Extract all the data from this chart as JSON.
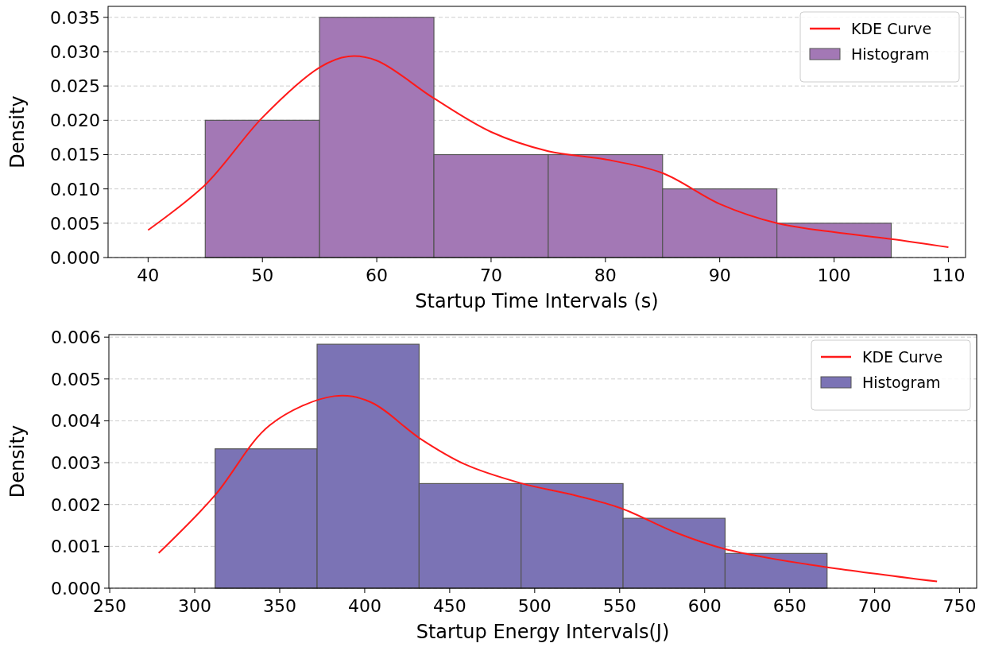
{
  "chart_data": [
    {
      "type": "histogram",
      "xlabel": "Startup Time Intervals (s)",
      "ylabel": "Density",
      "xlim": [
        36.5,
        111.5
      ],
      "ylim": [
        0,
        0.0366
      ],
      "xticks": [
        40,
        50,
        60,
        70,
        80,
        90,
        100,
        110
      ],
      "yticks": [
        {
          "value": 0,
          "label": "0.000"
        },
        {
          "value": 0.005,
          "label": "0.005"
        },
        {
          "value": 0.01,
          "label": "0.010"
        },
        {
          "value": 0.015,
          "label": "0.015"
        },
        {
          "value": 0.02,
          "label": "0.020"
        },
        {
          "value": 0.025,
          "label": "0.025"
        },
        {
          "value": 0.03,
          "label": "0.030"
        },
        {
          "value": 0.035,
          "label": "0.035"
        }
      ],
      "grid": "y",
      "legend": "top right",
      "series": [
        {
          "name": "KDE Curve",
          "type": "line",
          "color": "#ff1a1a",
          "x": [
            40,
            45,
            50,
            55,
            57.5,
            60,
            65,
            70,
            75,
            80,
            85,
            90,
            95,
            100,
            105,
            110
          ],
          "values": [
            0.004,
            0.0106,
            0.0204,
            0.0277,
            0.0293,
            0.0287,
            0.0232,
            0.0183,
            0.0155,
            0.0143,
            0.0123,
            0.0078,
            0.005,
            0.0037,
            0.0027,
            0.0015
          ]
        },
        {
          "name": "Histogram",
          "type": "histogram",
          "color": "#a378b5",
          "bins": [
            45,
            55,
            65,
            75,
            85,
            95,
            105
          ],
          "values": [
            0.02,
            0.035,
            0.015,
            0.015,
            0.01,
            0.005
          ]
        }
      ]
    },
    {
      "type": "histogram",
      "xlabel": "Startup Energy Intervals(J)",
      "ylabel": "Density",
      "xlim": [
        249.5,
        760
      ],
      "ylim": [
        0,
        0.00606
      ],
      "xticks": [
        250,
        300,
        350,
        400,
        450,
        500,
        550,
        600,
        650,
        700,
        750
      ],
      "yticks": [
        {
          "value": 0,
          "label": "0.000"
        },
        {
          "value": 0.001,
          "label": "0.001"
        },
        {
          "value": 0.002,
          "label": "0.002"
        },
        {
          "value": 0.003,
          "label": "0.003"
        },
        {
          "value": 0.004,
          "label": "0.004"
        },
        {
          "value": 0.005,
          "label": "0.005"
        },
        {
          "value": 0.006,
          "label": "0.006"
        }
      ],
      "grid": "y",
      "legend": "top right",
      "series": [
        {
          "name": "KDE Curve",
          "type": "line",
          "color": "#ff1a1a",
          "x": [
            278.8,
            311.5,
            344.3,
            382,
            403.3,
            432.8,
            459,
            491.8,
            524.6,
            550.8,
            583.6,
            611.5,
            639.3,
            672.2,
            736.7
          ],
          "values": [
            0.00084,
            0.0022,
            0.0039,
            0.00459,
            0.00445,
            0.00357,
            0.00296,
            0.00251,
            0.00221,
            0.00191,
            0.00132,
            0.00094,
            0.00071,
            0.0005,
            0.00016
          ]
        },
        {
          "name": "Histogram",
          "type": "histogram",
          "color": "#7b73b5",
          "bins": [
            312,
            372,
            432,
            492,
            552,
            612,
            672
          ],
          "values": [
            0.00333,
            0.00583,
            0.0025,
            0.0025,
            0.00167,
            0.00083
          ]
        }
      ]
    }
  ]
}
